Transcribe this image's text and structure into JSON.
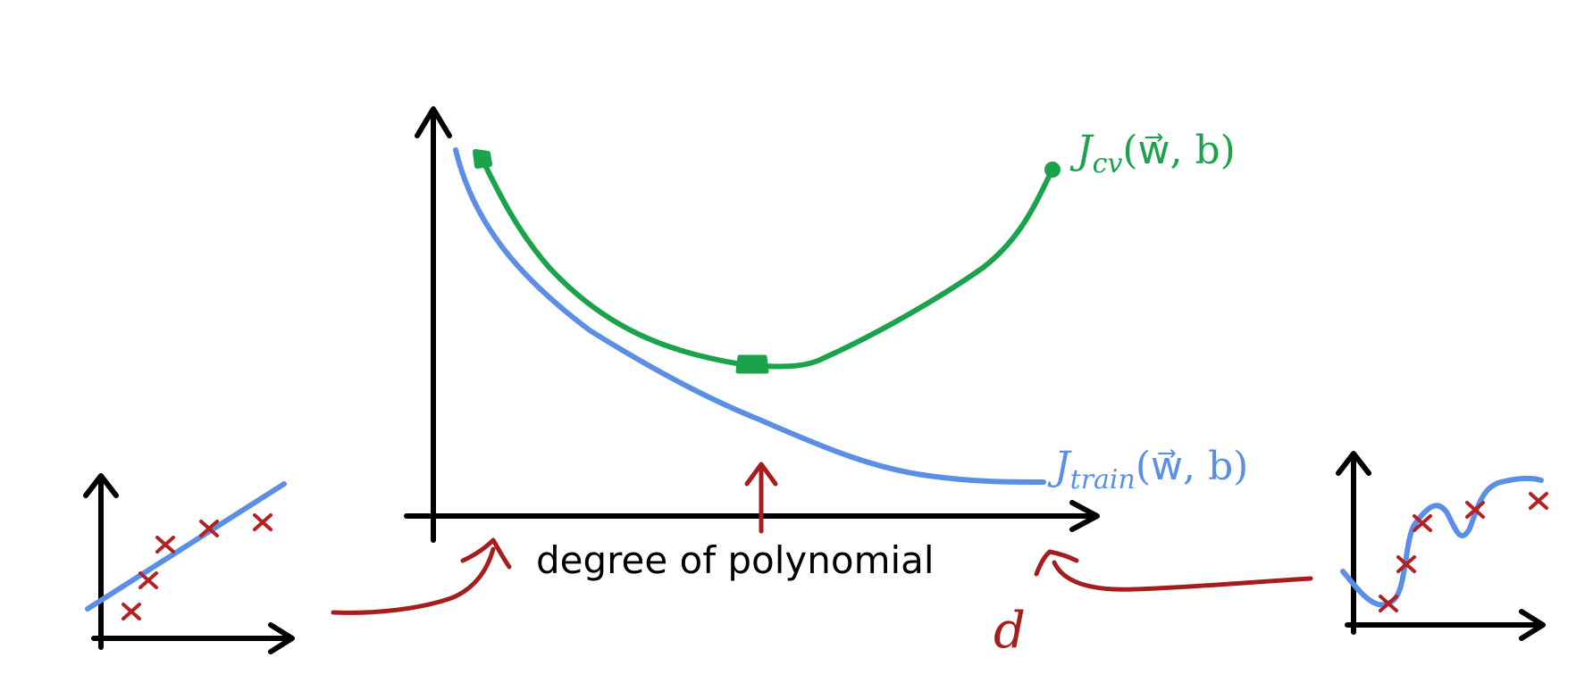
{
  "labels": {
    "j_cv_main": "J",
    "j_cv_sub": "cv",
    "j_cv_args": "(w⃗, b)",
    "j_train_main": "J",
    "j_train_sub": "train",
    "j_train_args": "(w⃗, b)",
    "x_axis": "degree of polynomial",
    "d_symbol": "d"
  },
  "colors": {
    "axis": "#000000",
    "cv_curve": "#1aa34a",
    "train_curve": "#5b8fe6",
    "annotation": "#a51d1d",
    "data_marker": "#b22222"
  }
}
